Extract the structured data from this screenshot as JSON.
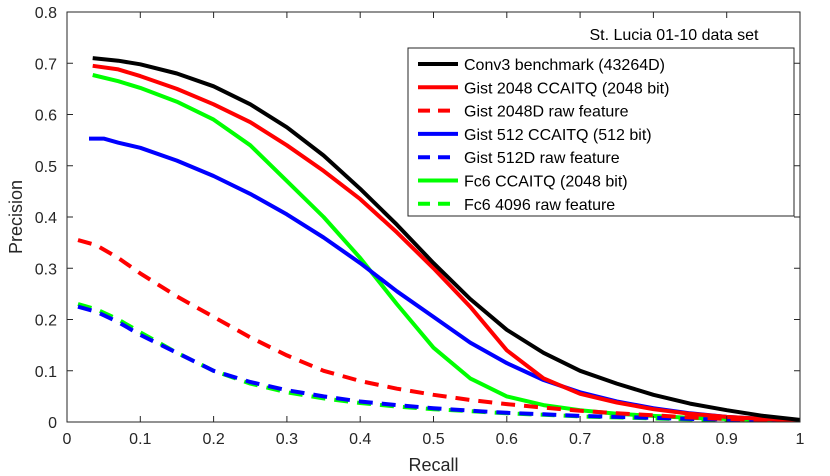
{
  "chart_data": {
    "type": "line",
    "xlabel": "Recall",
    "ylabel": "Precision",
    "xlim": [
      0,
      1
    ],
    "ylim": [
      0,
      0.8
    ],
    "xticks": [
      "0",
      "0.1",
      "0.2",
      "0.3",
      "0.4",
      "0.5",
      "0.6",
      "0.7",
      "0.8",
      "0.9",
      "1"
    ],
    "yticks": [
      "0",
      "0.1",
      "0.2",
      "0.3",
      "0.4",
      "0.5",
      "0.6",
      "0.7",
      "0.8"
    ],
    "xtick_values": [
      0,
      0.1,
      0.2,
      0.3,
      0.4,
      0.5,
      0.6,
      0.7,
      0.8,
      0.9,
      1
    ],
    "ytick_values": [
      0,
      0.1,
      0.2,
      0.3,
      0.4,
      0.5,
      0.6,
      0.7,
      0.8
    ],
    "grid": false,
    "legend_title": "St. Lucia 01-10 data set",
    "legend_position": "top-right",
    "series": [
      {
        "name": "Conv3 benchmark (43264D)",
        "color": "#000000",
        "dash": false,
        "x": [
          0.035,
          0.07,
          0.1,
          0.15,
          0.2,
          0.25,
          0.3,
          0.35,
          0.4,
          0.45,
          0.5,
          0.55,
          0.6,
          0.65,
          0.7,
          0.75,
          0.8,
          0.85,
          0.9,
          0.95,
          1.0
        ],
        "y": [
          0.71,
          0.705,
          0.698,
          0.68,
          0.655,
          0.62,
          0.575,
          0.52,
          0.455,
          0.385,
          0.31,
          0.24,
          0.18,
          0.135,
          0.1,
          0.075,
          0.053,
          0.036,
          0.023,
          0.012,
          0.004
        ]
      },
      {
        "name": "Gist 2048 CCAITQ (2048 bit)",
        "color": "#ff0000",
        "dash": false,
        "x": [
          0.035,
          0.07,
          0.1,
          0.15,
          0.2,
          0.25,
          0.3,
          0.35,
          0.4,
          0.45,
          0.5,
          0.55,
          0.6,
          0.65,
          0.7,
          0.75,
          0.8,
          0.85,
          0.9,
          0.95,
          1.0
        ],
        "y": [
          0.695,
          0.688,
          0.675,
          0.65,
          0.62,
          0.585,
          0.54,
          0.49,
          0.435,
          0.37,
          0.3,
          0.225,
          0.14,
          0.085,
          0.055,
          0.038,
          0.025,
          0.016,
          0.01,
          0.006,
          0.003
        ]
      },
      {
        "name": "Gist 2048D raw feature",
        "color": "#ff0000",
        "dash": true,
        "x": [
          0.015,
          0.04,
          0.07,
          0.1,
          0.15,
          0.2,
          0.25,
          0.3,
          0.35,
          0.4,
          0.45,
          0.5,
          0.55,
          0.6,
          0.65,
          0.7,
          0.75,
          0.8,
          0.85,
          0.9,
          0.95,
          1.0
        ],
        "y": [
          0.355,
          0.345,
          0.32,
          0.29,
          0.245,
          0.205,
          0.165,
          0.13,
          0.1,
          0.08,
          0.065,
          0.053,
          0.043,
          0.035,
          0.028,
          0.022,
          0.017,
          0.013,
          0.009,
          0.006,
          0.004,
          0.003
        ]
      },
      {
        "name": "Gist 512 CCAITQ (512 bit)",
        "color": "#0000ff",
        "dash": false,
        "x": [
          0.03,
          0.05,
          0.07,
          0.1,
          0.15,
          0.2,
          0.25,
          0.3,
          0.35,
          0.4,
          0.45,
          0.5,
          0.55,
          0.6,
          0.65,
          0.7,
          0.75,
          0.8,
          0.85,
          0.9,
          0.95,
          1.0
        ],
        "y": [
          0.553,
          0.553,
          0.545,
          0.535,
          0.51,
          0.48,
          0.445,
          0.405,
          0.36,
          0.31,
          0.255,
          0.205,
          0.155,
          0.115,
          0.082,
          0.058,
          0.04,
          0.027,
          0.017,
          0.01,
          0.006,
          0.003
        ]
      },
      {
        "name": "Gist 512D raw feature",
        "color": "#0000ff",
        "dash": true,
        "x": [
          0.015,
          0.04,
          0.07,
          0.1,
          0.15,
          0.2,
          0.25,
          0.3,
          0.35,
          0.4,
          0.45,
          0.5,
          0.55,
          0.6,
          0.65,
          0.7,
          0.75,
          0.8,
          0.85,
          0.9,
          0.95,
          1.0
        ],
        "y": [
          0.225,
          0.215,
          0.195,
          0.17,
          0.135,
          0.1,
          0.078,
          0.062,
          0.05,
          0.04,
          0.033,
          0.027,
          0.022,
          0.018,
          0.015,
          0.012,
          0.01,
          0.008,
          0.006,
          0.005,
          0.004,
          0.003
        ]
      },
      {
        "name": "Fc6 CCAITQ (2048 bit)",
        "color": "#00ff00",
        "dash": false,
        "x": [
          0.035,
          0.07,
          0.1,
          0.15,
          0.2,
          0.25,
          0.3,
          0.35,
          0.4,
          0.45,
          0.5,
          0.55,
          0.6,
          0.65,
          0.7,
          0.75,
          0.8,
          0.85,
          0.9,
          0.95,
          1.0
        ],
        "y": [
          0.677,
          0.665,
          0.652,
          0.625,
          0.59,
          0.54,
          0.47,
          0.4,
          0.32,
          0.23,
          0.145,
          0.085,
          0.05,
          0.033,
          0.023,
          0.016,
          0.012,
          0.008,
          0.006,
          0.004,
          0.002
        ]
      },
      {
        "name": "Fc6 4096 raw feature",
        "color": "#00ff00",
        "dash": true,
        "x": [
          0.015,
          0.04,
          0.07,
          0.1,
          0.15,
          0.2,
          0.25,
          0.3,
          0.35,
          0.4,
          0.45,
          0.5,
          0.55,
          0.6,
          0.65,
          0.7,
          0.75,
          0.8,
          0.85,
          0.9,
          0.95,
          1.0
        ],
        "y": [
          0.23,
          0.22,
          0.2,
          0.175,
          0.135,
          0.1,
          0.075,
          0.058,
          0.046,
          0.037,
          0.03,
          0.025,
          0.021,
          0.017,
          0.014,
          0.011,
          0.009,
          0.007,
          0.005,
          0.004,
          0.003,
          0.002
        ]
      }
    ]
  }
}
